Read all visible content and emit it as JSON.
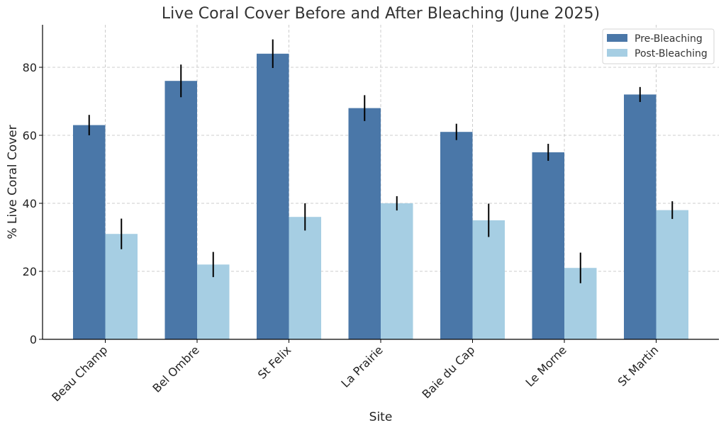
{
  "chart_data": {
    "type": "bar",
    "title": "Live Coral Cover Before and After Bleaching (June 2025)",
    "xlabel": "Site",
    "ylabel": "% Live Coral Cover",
    "categories": [
      "Beau Champ",
      "Bel Ombre",
      "St Felix",
      "La Prairie",
      "Baie du Cap",
      "Le Morne",
      "St Martin"
    ],
    "series": [
      {
        "name": "Pre-Bleaching",
        "color": "#4a77a8",
        "values": [
          63,
          76,
          84,
          68,
          61,
          55,
          72
        ],
        "errors": [
          3.0,
          4.8,
          4.2,
          3.8,
          2.4,
          2.5,
          2.2
        ]
      },
      {
        "name": "Post-Bleaching",
        "color": "#a6cee3",
        "values": [
          31,
          22,
          36,
          40,
          35,
          21,
          38
        ],
        "errors": [
          4.5,
          3.7,
          4.0,
          2.1,
          4.9,
          4.5,
          2.6
        ]
      }
    ],
    "ylim": [
      0,
      92.5
    ],
    "yticks": [
      0,
      20,
      40,
      60,
      80
    ],
    "grid": true,
    "legend_position": "top-right"
  }
}
